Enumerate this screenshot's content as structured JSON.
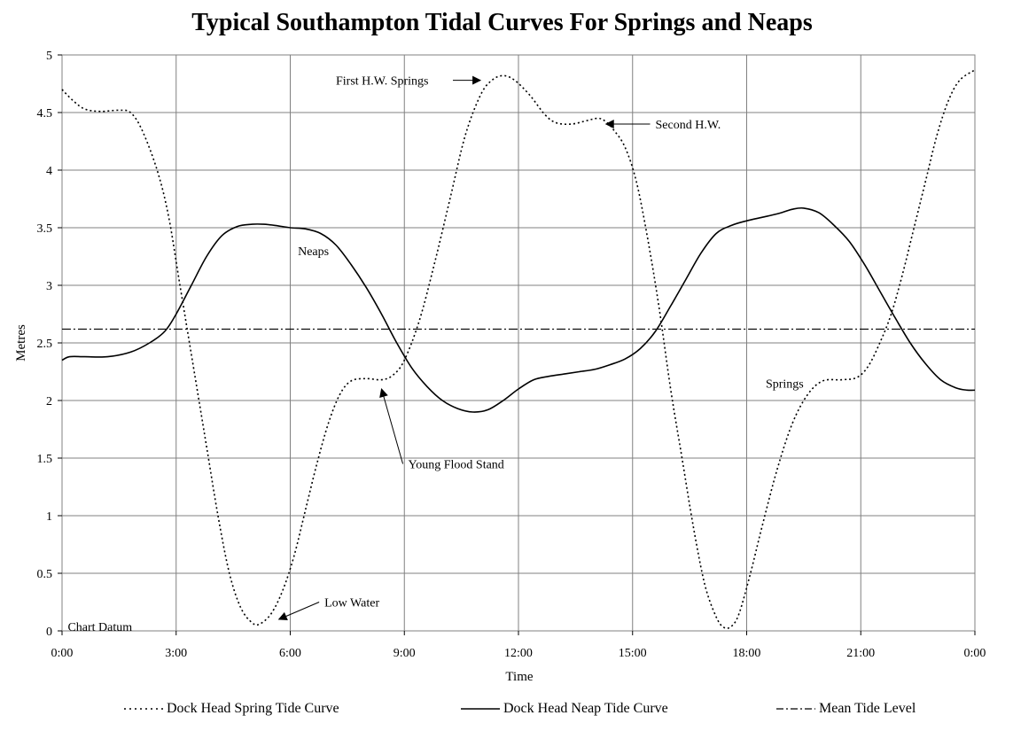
{
  "chart_data": {
    "type": "line",
    "title": "Typical Southampton Tidal Curves For Springs and Neaps",
    "xlabel": "Time",
    "ylabel": "Metres",
    "xlim": [
      0,
      24
    ],
    "ylim": [
      0,
      5
    ],
    "grid": true,
    "x_tick_labels": [
      "0:00",
      "3:00",
      "6:00",
      "9:00",
      "12:00",
      "15:00",
      "18:00",
      "21:00",
      "0:00"
    ],
    "y_tick_labels": [
      "0",
      "0.5",
      "1",
      "1.5",
      "2",
      "2.5",
      "3",
      "3.5",
      "4",
      "4.5",
      "5"
    ],
    "series": [
      {
        "name": "Dock Head Spring Tide Curve",
        "style": "dotted",
        "points": [
          [
            0,
            4.7
          ],
          [
            0.3,
            4.6
          ],
          [
            0.6,
            4.53
          ],
          [
            1,
            4.51
          ],
          [
            1.5,
            4.52
          ],
          [
            1.8,
            4.5
          ],
          [
            2.1,
            4.35
          ],
          [
            2.5,
            4.0
          ],
          [
            2.8,
            3.6
          ],
          [
            3.1,
            3.0
          ],
          [
            3.5,
            2.2
          ],
          [
            3.8,
            1.6
          ],
          [
            4.1,
            1.0
          ],
          [
            4.4,
            0.5
          ],
          [
            4.7,
            0.2
          ],
          [
            5.0,
            0.07
          ],
          [
            5.2,
            0.06
          ],
          [
            5.5,
            0.15
          ],
          [
            5.8,
            0.35
          ],
          [
            6.1,
            0.65
          ],
          [
            6.4,
            1.05
          ],
          [
            6.7,
            1.45
          ],
          [
            7.0,
            1.8
          ],
          [
            7.3,
            2.05
          ],
          [
            7.6,
            2.17
          ],
          [
            8.0,
            2.19
          ],
          [
            8.4,
            2.18
          ],
          [
            8.7,
            2.22
          ],
          [
            9.0,
            2.35
          ],
          [
            9.4,
            2.7
          ],
          [
            9.8,
            3.2
          ],
          [
            10.2,
            3.75
          ],
          [
            10.6,
            4.3
          ],
          [
            11.0,
            4.65
          ],
          [
            11.3,
            4.78
          ],
          [
            11.6,
            4.82
          ],
          [
            11.9,
            4.78
          ],
          [
            12.3,
            4.65
          ],
          [
            12.7,
            4.48
          ],
          [
            13.0,
            4.41
          ],
          [
            13.4,
            4.4
          ],
          [
            13.8,
            4.43
          ],
          [
            14.1,
            4.45
          ],
          [
            14.3,
            4.42
          ],
          [
            14.5,
            4.35
          ],
          [
            14.8,
            4.2
          ],
          [
            15.1,
            3.9
          ],
          [
            15.4,
            3.4
          ],
          [
            15.7,
            2.8
          ],
          [
            16.0,
            2.1
          ],
          [
            16.3,
            1.5
          ],
          [
            16.6,
            0.9
          ],
          [
            16.9,
            0.4
          ],
          [
            17.2,
            0.12
          ],
          [
            17.4,
            0.03
          ],
          [
            17.6,
            0.04
          ],
          [
            17.8,
            0.15
          ],
          [
            18.1,
            0.5
          ],
          [
            18.4,
            0.9
          ],
          [
            18.8,
            1.4
          ],
          [
            19.2,
            1.8
          ],
          [
            19.6,
            2.05
          ],
          [
            20.0,
            2.17
          ],
          [
            20.5,
            2.18
          ],
          [
            20.9,
            2.2
          ],
          [
            21.2,
            2.3
          ],
          [
            21.5,
            2.5
          ],
          [
            21.8,
            2.75
          ],
          [
            22.1,
            3.1
          ],
          [
            22.4,
            3.5
          ],
          [
            22.7,
            3.9
          ],
          [
            23.0,
            4.3
          ],
          [
            23.3,
            4.6
          ],
          [
            23.6,
            4.78
          ],
          [
            24,
            4.87
          ]
        ]
      },
      {
        "name": "Dock Head Neap Tide Curve",
        "style": "solid",
        "points": [
          [
            0,
            2.35
          ],
          [
            0.2,
            2.38
          ],
          [
            0.6,
            2.38
          ],
          [
            1.2,
            2.38
          ],
          [
            1.8,
            2.42
          ],
          [
            2.3,
            2.5
          ],
          [
            2.7,
            2.6
          ],
          [
            3.0,
            2.75
          ],
          [
            3.4,
            3.0
          ],
          [
            3.8,
            3.25
          ],
          [
            4.2,
            3.43
          ],
          [
            4.6,
            3.51
          ],
          [
            5.0,
            3.53
          ],
          [
            5.3,
            3.53
          ],
          [
            5.6,
            3.52
          ],
          [
            6.0,
            3.5
          ],
          [
            6.4,
            3.49
          ],
          [
            6.8,
            3.45
          ],
          [
            7.2,
            3.35
          ],
          [
            7.6,
            3.18
          ],
          [
            8.0,
            2.98
          ],
          [
            8.4,
            2.75
          ],
          [
            8.8,
            2.5
          ],
          [
            9.2,
            2.28
          ],
          [
            9.6,
            2.12
          ],
          [
            10.0,
            2.0
          ],
          [
            10.4,
            1.93
          ],
          [
            10.8,
            1.9
          ],
          [
            11.2,
            1.92
          ],
          [
            11.6,
            2.0
          ],
          [
            12.0,
            2.1
          ],
          [
            12.4,
            2.18
          ],
          [
            12.8,
            2.21
          ],
          [
            13.2,
            2.23
          ],
          [
            13.6,
            2.25
          ],
          [
            14.0,
            2.27
          ],
          [
            14.4,
            2.31
          ],
          [
            14.8,
            2.36
          ],
          [
            15.2,
            2.45
          ],
          [
            15.6,
            2.6
          ],
          [
            16.0,
            2.82
          ],
          [
            16.4,
            3.05
          ],
          [
            16.8,
            3.28
          ],
          [
            17.2,
            3.45
          ],
          [
            17.6,
            3.52
          ],
          [
            18.0,
            3.56
          ],
          [
            18.4,
            3.59
          ],
          [
            18.8,
            3.62
          ],
          [
            19.2,
            3.66
          ],
          [
            19.5,
            3.67
          ],
          [
            19.9,
            3.63
          ],
          [
            20.3,
            3.52
          ],
          [
            20.7,
            3.38
          ],
          [
            21.1,
            3.18
          ],
          [
            21.5,
            2.95
          ],
          [
            21.9,
            2.72
          ],
          [
            22.3,
            2.5
          ],
          [
            22.7,
            2.32
          ],
          [
            23.1,
            2.18
          ],
          [
            23.5,
            2.11
          ],
          [
            23.8,
            2.09
          ],
          [
            24,
            2.09
          ]
        ]
      },
      {
        "name": "Mean Tide Level",
        "style": "dashdot",
        "points": [
          [
            0,
            2.62
          ],
          [
            24,
            2.62
          ]
        ]
      }
    ],
    "annotations": [
      {
        "text": "First H.W. Springs",
        "x": 7.2,
        "y": 4.78,
        "arrow_to": [
          11.0,
          4.78
        ]
      },
      {
        "text": "Second H.W.",
        "x": 15.6,
        "y": 4.4,
        "arrow_to": [
          14.3,
          4.4
        ]
      },
      {
        "text": "Neaps",
        "x": 6.2,
        "y": 3.3
      },
      {
        "text": "Young Flood Stand",
        "x": 9.1,
        "y": 1.45,
        "arrow_to": [
          8.4,
          2.1
        ]
      },
      {
        "text": "Low Water",
        "x": 6.9,
        "y": 0.25,
        "arrow_to": [
          5.7,
          0.1
        ]
      },
      {
        "text": "Springs",
        "x": 18.5,
        "y": 2.15
      },
      {
        "text": "Chart Datum",
        "x": 0.15,
        "y": 0.04
      }
    ]
  }
}
